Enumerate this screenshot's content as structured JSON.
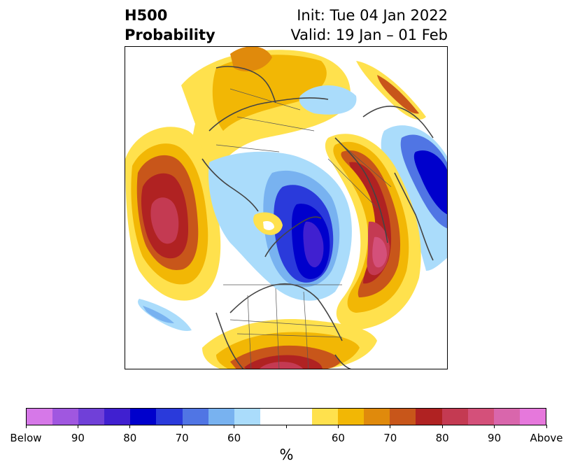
{
  "title": {
    "line1_left": "H500",
    "line2_left": "Probability",
    "line1_right": "Init: Tue 04 Jan 2022",
    "line2_right": "Valid: 19 Jan – 01 Feb"
  },
  "colorbar": {
    "unit": "%",
    "colors": [
      "#d678e8",
      "#a057e0",
      "#7040d8",
      "#4020d0",
      "#0000cc",
      "#2a3adb",
      "#5075e4",
      "#78b2f0",
      "#aadcfb",
      "#ffffff",
      "#ffffff",
      "#ffe14d",
      "#f2b705",
      "#e08a0c",
      "#c8561a",
      "#b02222",
      "#c43a52",
      "#d4507a",
      "#d966ac",
      "#e678dc"
    ],
    "tick_labels": [
      "Below",
      "90",
      "80",
      "70",
      "60",
      "60",
      "70",
      "80",
      "90",
      "Above"
    ]
  },
  "map": {
    "projection": "north polar stereographic",
    "below_colors": [
      "#aadcfb",
      "#78b2f0",
      "#5075e4",
      "#2a3adb",
      "#0000cc",
      "#4020d0"
    ],
    "above_colors": [
      "#ffe14d",
      "#f2b705",
      "#e08a0c",
      "#c8561a",
      "#b02222",
      "#c43a52",
      "#d4507a"
    ]
  }
}
